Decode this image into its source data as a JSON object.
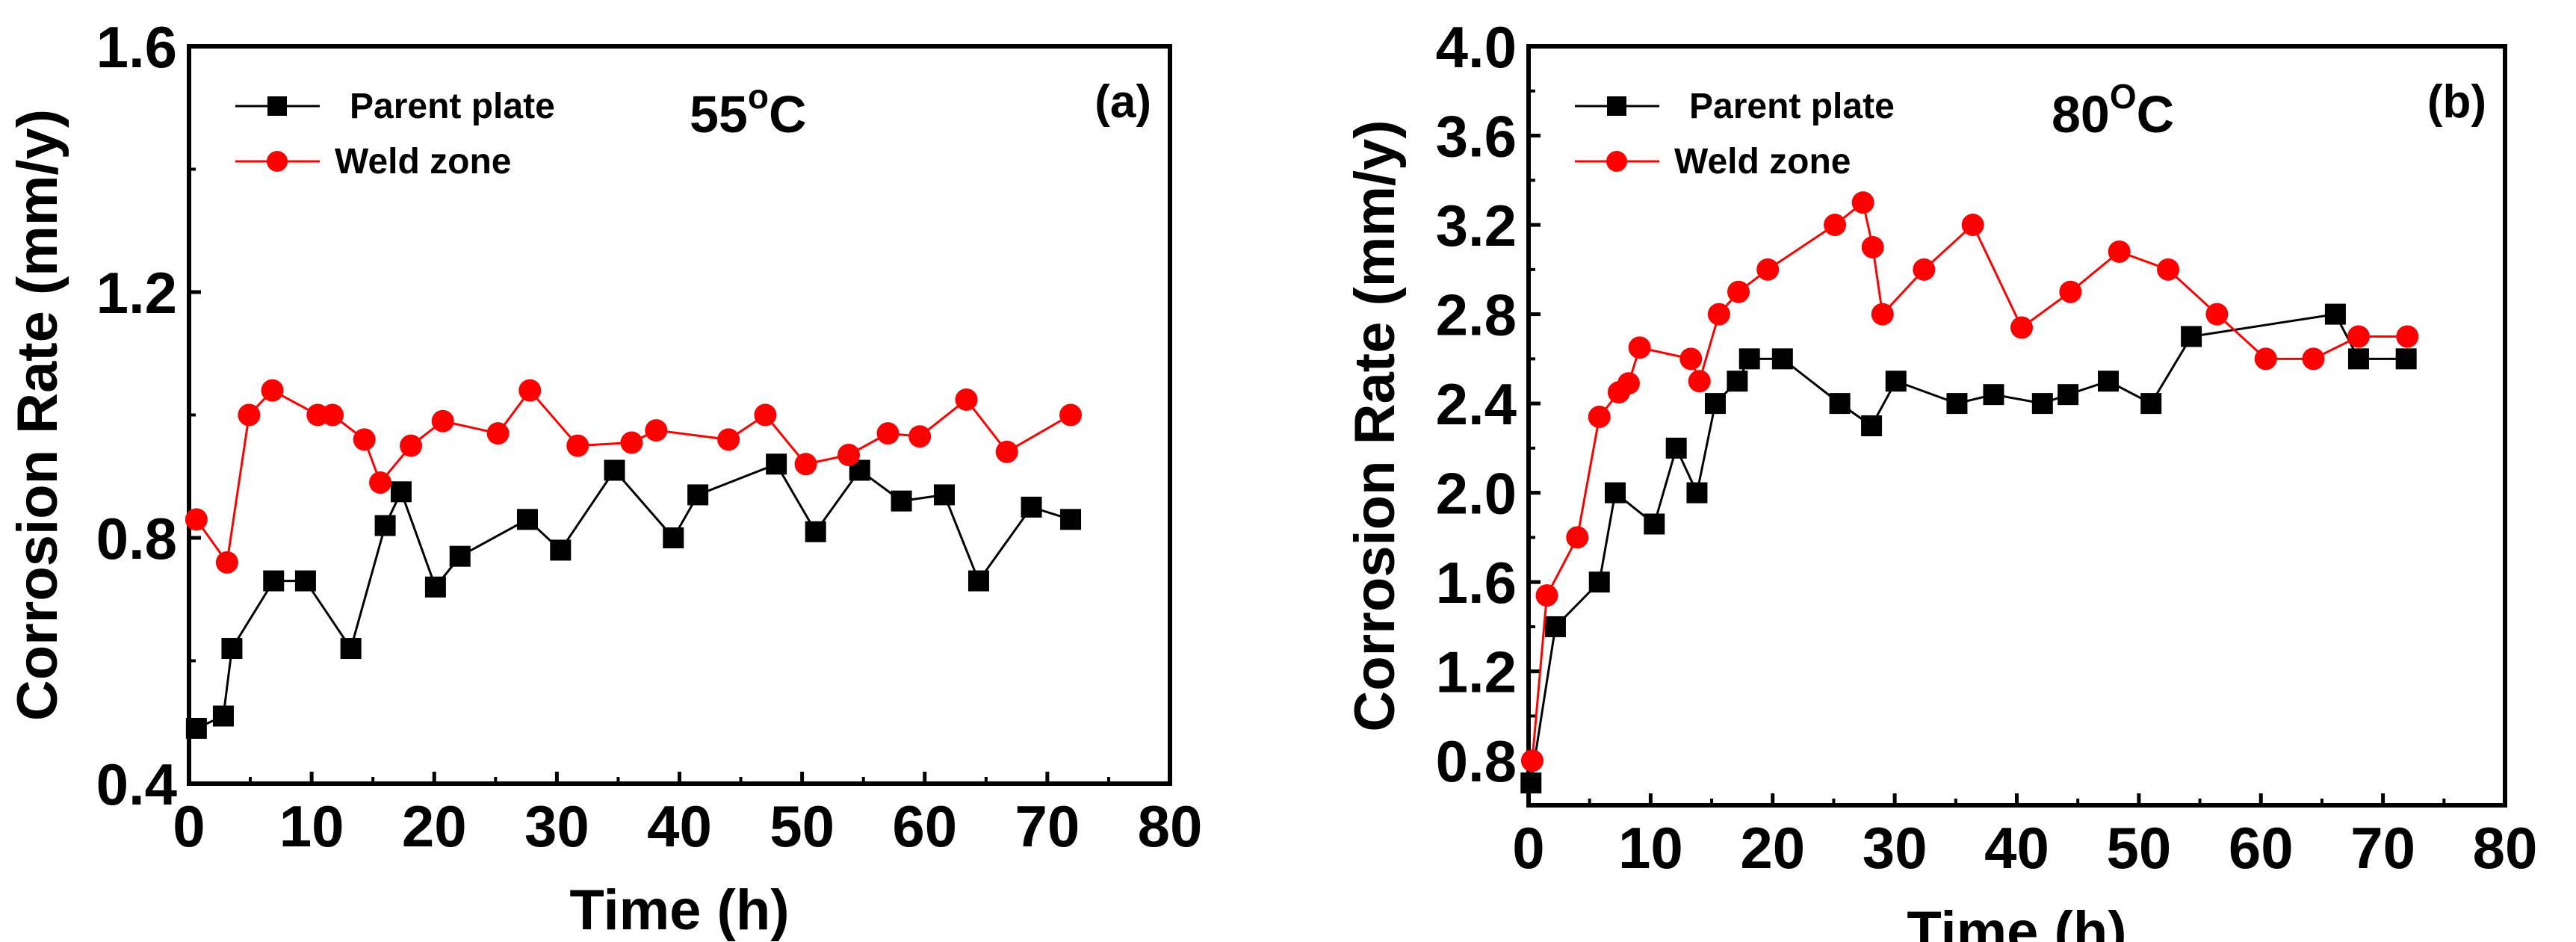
{
  "colors": {
    "parent": "#000000",
    "weld": "#ff0000",
    "axis": "#000000"
  },
  "chart_data": [
    {
      "type": "line",
      "panel_label": "(a)",
      "temperature": {
        "value": "55",
        "unit_sup": "o",
        "unit": "C"
      },
      "xlabel": "Time (h)",
      "ylabel": "Corrosion Rate (mm/y)",
      "xlim": [
        0,
        80
      ],
      "ylim": [
        0.4,
        1.6
      ],
      "xticks": [
        "0",
        "10",
        "20",
        "30",
        "40",
        "50",
        "60",
        "70",
        "80"
      ],
      "xtick_values": [
        0,
        10,
        20,
        30,
        40,
        50,
        60,
        70,
        80
      ],
      "yticks": [
        "0.4",
        "0.8",
        "1.2",
        "1.6"
      ],
      "ytick_values": [
        0.4,
        0.8,
        1.2,
        1.6
      ],
      "yminor": [
        0.6,
        1.0,
        1.4
      ],
      "legend_position": "top-left",
      "series": [
        {
          "name": "Parent plate",
          "marker": "square",
          "color": "#000000",
          "x": [
            0.6,
            2.8,
            3.5,
            6.9,
            9.5,
            13.2,
            16.0,
            17.3,
            20.1,
            22.1,
            27.6,
            30.3,
            34.7,
            39.5,
            41.5,
            47.9,
            51.1,
            54.7,
            58.1,
            61.6,
            64.4,
            68.7,
            71.9
          ],
          "y": [
            0.49,
            0.51,
            0.62,
            0.73,
            0.73,
            0.62,
            0.82,
            0.875,
            0.72,
            0.77,
            0.83,
            0.78,
            0.91,
            0.8,
            0.87,
            0.92,
            0.81,
            0.91,
            0.86,
            0.87,
            0.73,
            0.85,
            0.83
          ]
        },
        {
          "name": "Weld zone",
          "marker": "circle",
          "color": "#ff0000",
          "x": [
            0.6,
            3.1,
            4.9,
            6.8,
            10.5,
            11.7,
            14.3,
            15.6,
            18.1,
            20.7,
            25.2,
            27.8,
            31.7,
            36.1,
            38.1,
            44.0,
            47.0,
            50.3,
            53.8,
            57.0,
            59.6,
            63.4,
            66.7,
            71.9
          ],
          "y": [
            0.83,
            0.76,
            1.0,
            1.04,
            1.0,
            1.0,
            0.96,
            0.89,
            0.95,
            0.99,
            0.97,
            1.04,
            0.95,
            0.955,
            0.975,
            0.96,
            1.0,
            0.92,
            0.935,
            0.97,
            0.965,
            1.025,
            0.94,
            1.0
          ]
        }
      ]
    },
    {
      "type": "line",
      "panel_label": "(b)",
      "temperature": {
        "value": "80",
        "unit_sup": "O",
        "unit": "C"
      },
      "xlabel": "Time (h)",
      "ylabel": "Corrosion Rate (mm/y)",
      "xlim": [
        0,
        80
      ],
      "ylim": [
        0.6,
        4.0
      ],
      "xticks": [
        "0",
        "10",
        "20",
        "30",
        "40",
        "50",
        "60",
        "70",
        "80"
      ],
      "xtick_values": [
        0,
        10,
        20,
        30,
        40,
        50,
        60,
        70,
        80
      ],
      "yticks": [
        "0.8",
        "1.2",
        "1.6",
        "2.0",
        "2.4",
        "2.8",
        "3.2",
        "3.6",
        "4.0"
      ],
      "ytick_values": [
        0.8,
        1.2,
        1.6,
        2.0,
        2.4,
        2.8,
        3.2,
        3.6,
        4.0
      ],
      "yminor": [
        1.0,
        1.4,
        1.8,
        2.2,
        2.6,
        3.0,
        3.4,
        3.8
      ],
      "legend_position": "top-left",
      "series": [
        {
          "name": "Parent plate",
          "marker": "square",
          "color": "#000000",
          "x": [
            0.2,
            2.2,
            5.8,
            7.1,
            10.3,
            12.1,
            13.8,
            15.3,
            17.1,
            18.1,
            20.8,
            25.5,
            28.1,
            30.1,
            35.1,
            38.1,
            42.1,
            44.2,
            47.5,
            51.0,
            54.3,
            66.1,
            68.0,
            71.9
          ],
          "y": [
            0.7,
            1.4,
            1.6,
            2.0,
            1.86,
            2.2,
            2.0,
            2.4,
            2.5,
            2.6,
            2.6,
            2.4,
            2.3,
            2.5,
            2.4,
            2.44,
            2.4,
            2.44,
            2.5,
            2.4,
            2.7,
            2.8,
            2.6,
            2.6
          ]
        },
        {
          "name": "Weld zone",
          "marker": "circle",
          "color": "#ff0000",
          "x": [
            0.3,
            1.5,
            4.0,
            5.8,
            7.4,
            8.2,
            9.1,
            13.3,
            14.0,
            15.6,
            17.2,
            19.6,
            25.1,
            27.4,
            28.2,
            29.0,
            32.4,
            36.4,
            40.4,
            44.4,
            48.4,
            52.4,
            56.4,
            60.4,
            64.3,
            68.0,
            72.0
          ],
          "y": [
            0.8,
            1.54,
            1.8,
            2.34,
            2.45,
            2.49,
            2.65,
            2.6,
            2.5,
            2.8,
            2.9,
            3.0,
            3.2,
            3.3,
            3.1,
            2.8,
            3.0,
            3.2,
            2.74,
            2.9,
            3.08,
            3.0,
            2.8,
            2.6,
            2.6,
            2.7,
            2.7
          ]
        }
      ]
    }
  ]
}
